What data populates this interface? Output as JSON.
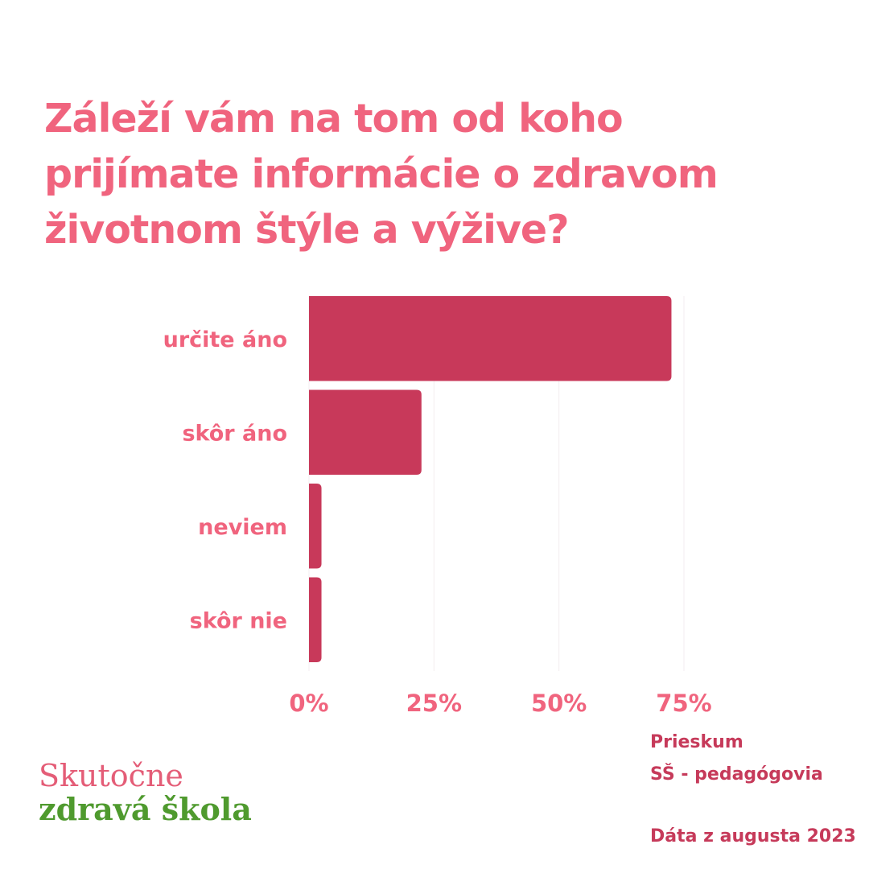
{
  "title_lines": [
    "Záleží vám na tom od koho",
    "prijímate informácie o zdravom",
    "životnom štýle a výžive?"
  ],
  "colors": {
    "title": "#f0647e",
    "bar": "#c8395a",
    "note": "#c63a5a",
    "logo_top": "#e45d77",
    "logo_bottom": "#4f9a2e",
    "grid": "#f3eef0"
  },
  "chart_data": {
    "type": "bar",
    "orientation": "horizontal",
    "categories": [
      "určite áno",
      "skôr áno",
      "neviem",
      "skôr nie"
    ],
    "values": [
      72.5,
      22.5,
      2.5,
      2.5
    ],
    "xlim": [
      0,
      75
    ],
    "xticks": [
      0,
      25,
      50,
      75
    ],
    "xtick_labels": [
      "0%",
      "25%",
      "50%",
      "75%"
    ],
    "grid": true,
    "xlabel": "",
    "ylabel": ""
  },
  "notes": {
    "line1": "Prieskum",
    "line2": "SŠ - pedagógovia",
    "line3": "Dáta z augusta 2023"
  },
  "logo": {
    "line1": "Skutočne",
    "line2": "zdravá škola"
  }
}
